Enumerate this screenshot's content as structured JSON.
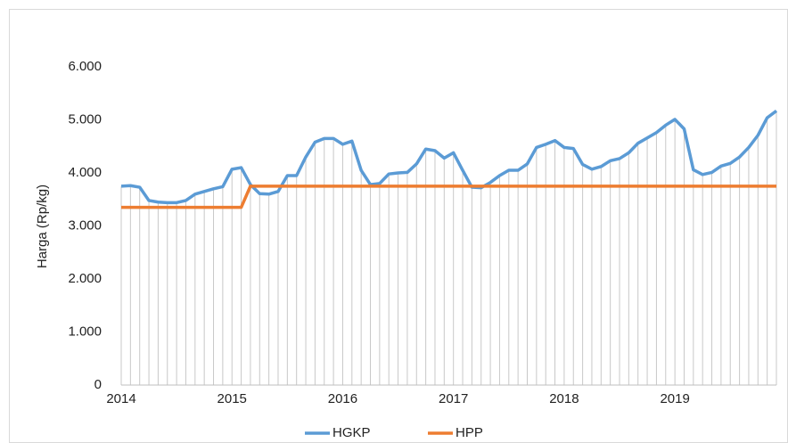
{
  "chart_data": {
    "type": "line",
    "y_label": "Harga (Rp/kg)",
    "categories": [
      "2014",
      null,
      null,
      null,
      null,
      null,
      null,
      null,
      null,
      null,
      null,
      null,
      "2015",
      null,
      null,
      null,
      null,
      null,
      null,
      null,
      null,
      null,
      null,
      null,
      "2016",
      null,
      null,
      null,
      null,
      null,
      null,
      null,
      null,
      null,
      null,
      null,
      "2017",
      null,
      null,
      null,
      null,
      null,
      null,
      null,
      null,
      null,
      null,
      null,
      "2018",
      null,
      null,
      null,
      null,
      null,
      null,
      null,
      null,
      null,
      null,
      null,
      "2019",
      null,
      null,
      null,
      null,
      null,
      null,
      null,
      null,
      null,
      null,
      null
    ],
    "series": [
      {
        "name": "HGKP",
        "color": "#5b9bd5",
        "values": [
          3750,
          3760,
          3730,
          3480,
          3450,
          3440,
          3440,
          3480,
          3600,
          3650,
          3700,
          3740,
          4070,
          4100,
          3780,
          3610,
          3600,
          3650,
          3950,
          3950,
          4300,
          4580,
          4650,
          4650,
          4540,
          4600,
          4050,
          3780,
          3800,
          3980,
          4000,
          4010,
          4170,
          4450,
          4420,
          4280,
          4380,
          4050,
          3730,
          3720,
          3820,
          3950,
          4050,
          4050,
          4170,
          4480,
          4540,
          4610,
          4480,
          4460,
          4160,
          4070,
          4120,
          4230,
          4270,
          4380,
          4560,
          4660,
          4760,
          4900,
          5010,
          4830,
          4060,
          3970,
          4010,
          4130,
          4180,
          4300,
          4480,
          4710,
          5040,
          5170
        ]
      },
      {
        "name": "HPP",
        "color": "#ed7d31",
        "values": [
          3350,
          3350,
          3350,
          3350,
          3350,
          3350,
          3350,
          3350,
          3350,
          3350,
          3350,
          3350,
          3350,
          3350,
          3750,
          3750,
          3750,
          3750,
          3750,
          3750,
          3750,
          3750,
          3750,
          3750,
          3750,
          3750,
          3750,
          3750,
          3750,
          3750,
          3750,
          3750,
          3750,
          3750,
          3750,
          3750,
          3750,
          3750,
          3750,
          3750,
          3750,
          3750,
          3750,
          3750,
          3750,
          3750,
          3750,
          3750,
          3750,
          3750,
          3750,
          3750,
          3750,
          3750,
          3750,
          3750,
          3750,
          3750,
          3750,
          3750,
          3750,
          3750,
          3750,
          3750,
          3750,
          3750,
          3750,
          3750,
          3750,
          3750,
          3750,
          3750
        ]
      }
    ],
    "ylim": [
      0,
      6000
    ],
    "yticks": [
      0,
      {
        "value": 1000,
        "label": "1.000"
      },
      {
        "value": 2000,
        "label": "2.000"
      },
      {
        "value": 3000,
        "label": "3.000"
      },
      {
        "value": 4000,
        "label": "4.000"
      },
      {
        "value": 5000,
        "label": "5.000"
      },
      {
        "value": 6000,
        "label": "6.000"
      }
    ],
    "legend": "bottom"
  }
}
